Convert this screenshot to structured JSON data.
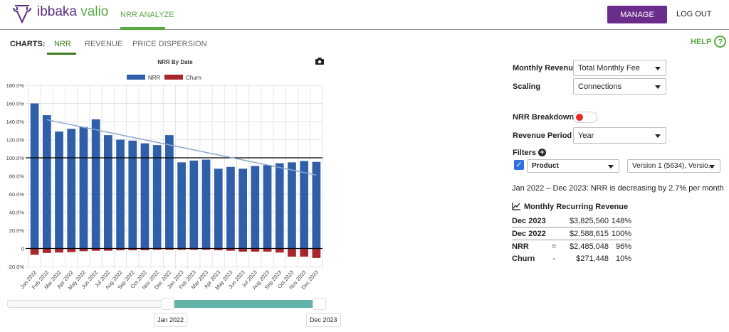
{
  "header": {
    "brand_a": "ibbaka",
    "brand_b": "valio",
    "nav": "NRR ANALYZE",
    "manage": "MANAGE",
    "logout": "LOG OUT"
  },
  "subnav": {
    "label": "CHARTS:",
    "tabs": [
      "NRR",
      "REVENUE",
      "PRICE DISPERSION"
    ],
    "help": "HELP",
    "help_icon": "?"
  },
  "controls": {
    "monthly_revenue_label": "Monthly Revenue",
    "monthly_revenue_value": "Total Monthly Fee",
    "scaling_label": "Scaling",
    "scaling_value": "Connections",
    "breakdown_label": "NRR Breakdown",
    "period_label": "Revenue Period",
    "period_value": "Year",
    "filters_label": "Filters",
    "filter_field": "Product",
    "filter_values": "Version 1 (5634), Versio..."
  },
  "summary": "Jan 2022 – Dec 2023: NRR is decreasing by 2.7% per month",
  "mrr": {
    "title": "Monthly Recurring Revenue",
    "rows": [
      {
        "label": "Dec 2023",
        "op": "",
        "amount": "$3,825,560",
        "pct": "148%"
      },
      {
        "label": "Dec 2022",
        "op": "",
        "amount": "$2,588,615",
        "pct": "100%"
      },
      {
        "label": "NRR",
        "op": "=",
        "amount": "$2,485,048",
        "pct": "96%"
      },
      {
        "label": "Churn",
        "op": "-",
        "amount": "$271,448",
        "pct": "10%"
      }
    ]
  },
  "slider": {
    "start": "Jan 2022",
    "end": "Dec 2023"
  },
  "colors": {
    "nrr": "#2e5fa8",
    "churn": "#a8272d",
    "trend": "#8aa6cf",
    "purple": "#6b2d8c",
    "green": "#5aa844",
    "slider": "#62b5a6"
  },
  "chart_data": {
    "type": "bar",
    "title": "NRR By Date",
    "legend": [
      "NRR",
      "Churn"
    ],
    "legend_position": "top",
    "categories": [
      "Jan 2022",
      "Feb 2022",
      "Mar 2022",
      "Apr 2022",
      "May 2022",
      "Jun 2022",
      "Jul 2022",
      "Aug 2022",
      "Sep 2022",
      "Oct 2022",
      "Nov 2022",
      "Dec 2022",
      "Jan 2023",
      "Feb 2023",
      "Mar 2023",
      "Apr 2023",
      "May 2023",
      "Jun 2023",
      "Jul 2023",
      "Aug 2023",
      "Sep 2023",
      "Oct 2023",
      "Nov 2023",
      "Dec 2023"
    ],
    "series": [
      {
        "name": "NRR",
        "values": [
          160,
          147,
          129,
          132,
          134,
          142.5,
          125,
          120,
          119,
          116,
          114,
          125,
          95,
          97,
          98,
          88,
          90,
          88,
          91,
          92,
          94,
          95,
          96.5,
          95.5
        ]
      },
      {
        "name": "Churn",
        "values": [
          -7,
          -5,
          -4.5,
          -4,
          -3,
          -2.5,
          -2.5,
          -2,
          -2,
          -2,
          -1.5,
          -1.5,
          -1.5,
          -1.5,
          -1.5,
          -2,
          -2.5,
          -3.5,
          -3.5,
          -3.5,
          -4.5,
          -9,
          -9,
          -10.5
        ]
      }
    ],
    "trend": {
      "from": [
        1,
        142
      ],
      "to": [
        23,
        81
      ]
    },
    "ylim": [
      -20,
      180
    ],
    "yticks": [
      "-20.0%",
      "0",
      "20.0%",
      "40.0%",
      "60.0%",
      "80.0%",
      "100.0%",
      "120.0%",
      "140.0%",
      "160.0%",
      "180.0%"
    ],
    "ytick_values": [
      -20,
      0,
      20,
      40,
      60,
      80,
      100,
      120,
      140,
      160,
      180
    ],
    "reference_line": 100,
    "grid": true
  }
}
